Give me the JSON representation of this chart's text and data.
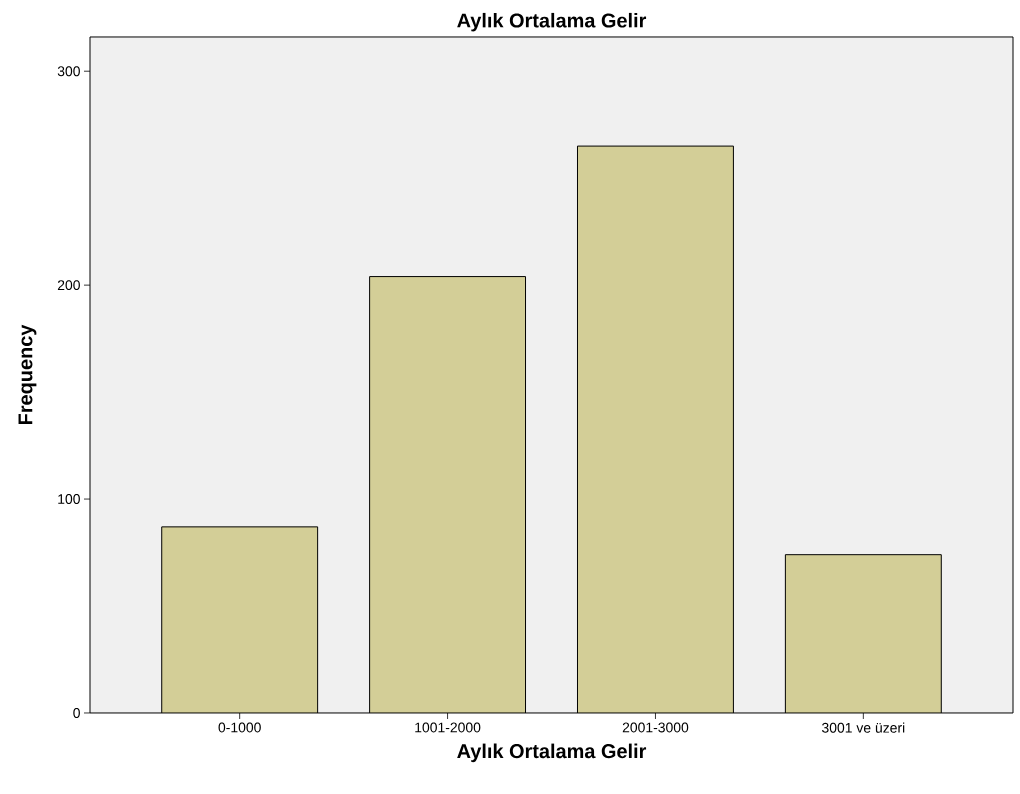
{
  "chart_data": {
    "type": "bar",
    "title": "Aylık Ortalama Gelir",
    "xlabel": "Aylık Ortalama Gelir",
    "ylabel": "Frequency",
    "categories": [
      "0-1000",
      "1001-2000",
      "2001-3000",
      "3001 ve üzeri"
    ],
    "values": [
      87,
      204,
      265,
      74
    ],
    "color": "#d3ce97",
    "ylim": [
      0,
      316
    ],
    "yticks": [
      0,
      100,
      200,
      300
    ],
    "grid": false
  }
}
